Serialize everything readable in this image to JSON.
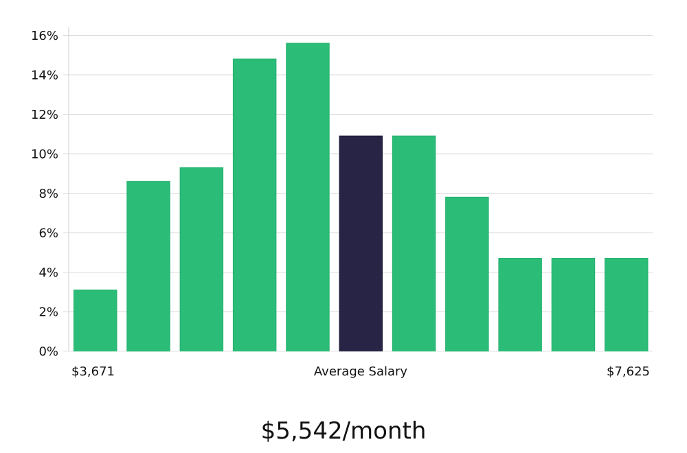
{
  "chart_data": {
    "type": "bar",
    "values": [
      3.1,
      8.6,
      9.3,
      14.8,
      15.6,
      10.9,
      10.9,
      7.8,
      4.7,
      4.7,
      4.7
    ],
    "highlight_index": 5,
    "ylim": [
      0,
      16
    ],
    "y_ticks": [
      "0%",
      "2%",
      "4%",
      "6%",
      "8%",
      "10%",
      "12%",
      "14%",
      "16%"
    ],
    "x_labels": {
      "left": "$3,671",
      "center": "Average Salary",
      "right": "$7,625"
    },
    "grid": true,
    "colors": {
      "bar": "#2bbd77",
      "highlight": "#272445",
      "grid": "#d9d9d9"
    }
  },
  "headline": "$5,542/month"
}
